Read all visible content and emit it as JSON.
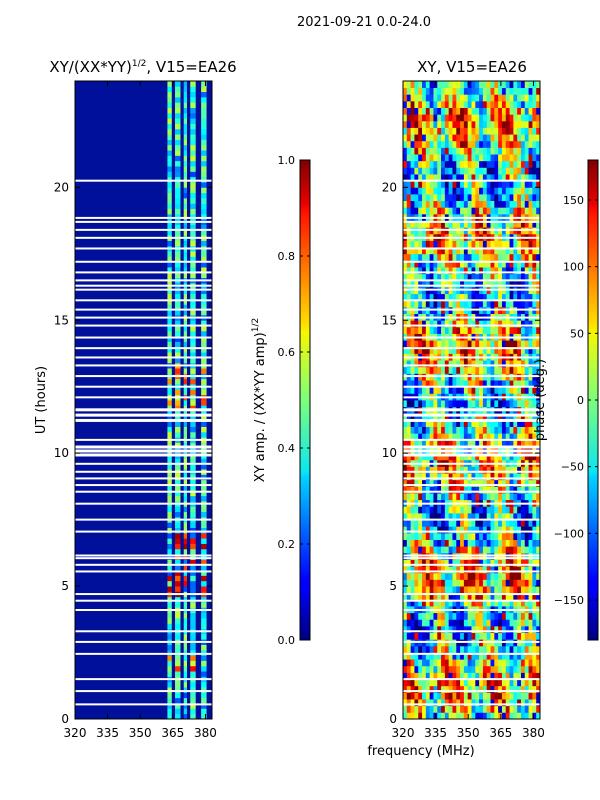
{
  "suptitle": "2021-09-21 0.0-24.0",
  "xlabel": "frequency (MHz)",
  "ylabel": "UT (hours)",
  "chart_data": [
    {
      "type": "heatmap",
      "title_main": "XY/(XX*YY)",
      "title_exp": "1/2",
      "title_tail": ", V15=EA26",
      "x_ticks": [
        "320",
        "335",
        "350",
        "365",
        "380"
      ],
      "x_tick_values": [
        320,
        335,
        350,
        365,
        380
      ],
      "xlim": [
        320,
        383
      ],
      "y_ticks": [
        "0",
        "5",
        "10",
        "15",
        "20"
      ],
      "y_tick_values": [
        0,
        5,
        10,
        15,
        20
      ],
      "ylim": [
        0,
        24
      ],
      "colorbar": {
        "label_main": "XY amp. / (XX*YY amp)",
        "label_exp": "1/2",
        "ticks": [
          "0.0",
          "0.2",
          "0.4",
          "0.6",
          "0.8",
          "1.0"
        ],
        "tick_values": [
          0.0,
          0.2,
          0.4,
          0.6,
          0.8,
          1.0
        ],
        "range": [
          0,
          1
        ]
      }
    },
    {
      "type": "heatmap",
      "title": "XY, V15=EA26",
      "x_ticks": [
        "320",
        "335",
        "350",
        "365",
        "380"
      ],
      "x_tick_values": [
        320,
        335,
        350,
        365,
        380
      ],
      "xlim": [
        320,
        383
      ],
      "y_ticks": [
        "0",
        "5",
        "10",
        "15",
        "20"
      ],
      "y_tick_values": [
        0,
        5,
        10,
        15,
        20
      ],
      "ylim": [
        0,
        24
      ],
      "colorbar": {
        "label": "phase (deg.)",
        "ticks": [
          "−150",
          "−100",
          "−50",
          "0",
          "50",
          "100",
          "150"
        ],
        "tick_values": [
          -150,
          -100,
          -50,
          0,
          50,
          100,
          150
        ],
        "range": [
          -180,
          180
        ]
      }
    }
  ],
  "flagged_hours": [
    0.55,
    1.05,
    1.5,
    2.45,
    2.9,
    3.3,
    4.1,
    4.45,
    4.7,
    5.55,
    5.8,
    6.05,
    6.15,
    7.05,
    7.5,
    8.1,
    8.55,
    8.8,
    9.05,
    9.3,
    9.6,
    9.95,
    10.1,
    10.25,
    10.5,
    11.25,
    11.45,
    11.65,
    12.1,
    12.5,
    12.9,
    13.3,
    13.6,
    13.95,
    14.35,
    14.8,
    15.1,
    15.4,
    15.75,
    16.15,
    16.3,
    16.5,
    16.8,
    17.2,
    17.7,
    18.1,
    18.4,
    18.7,
    18.85,
    20.25
  ],
  "colormap": "jet"
}
